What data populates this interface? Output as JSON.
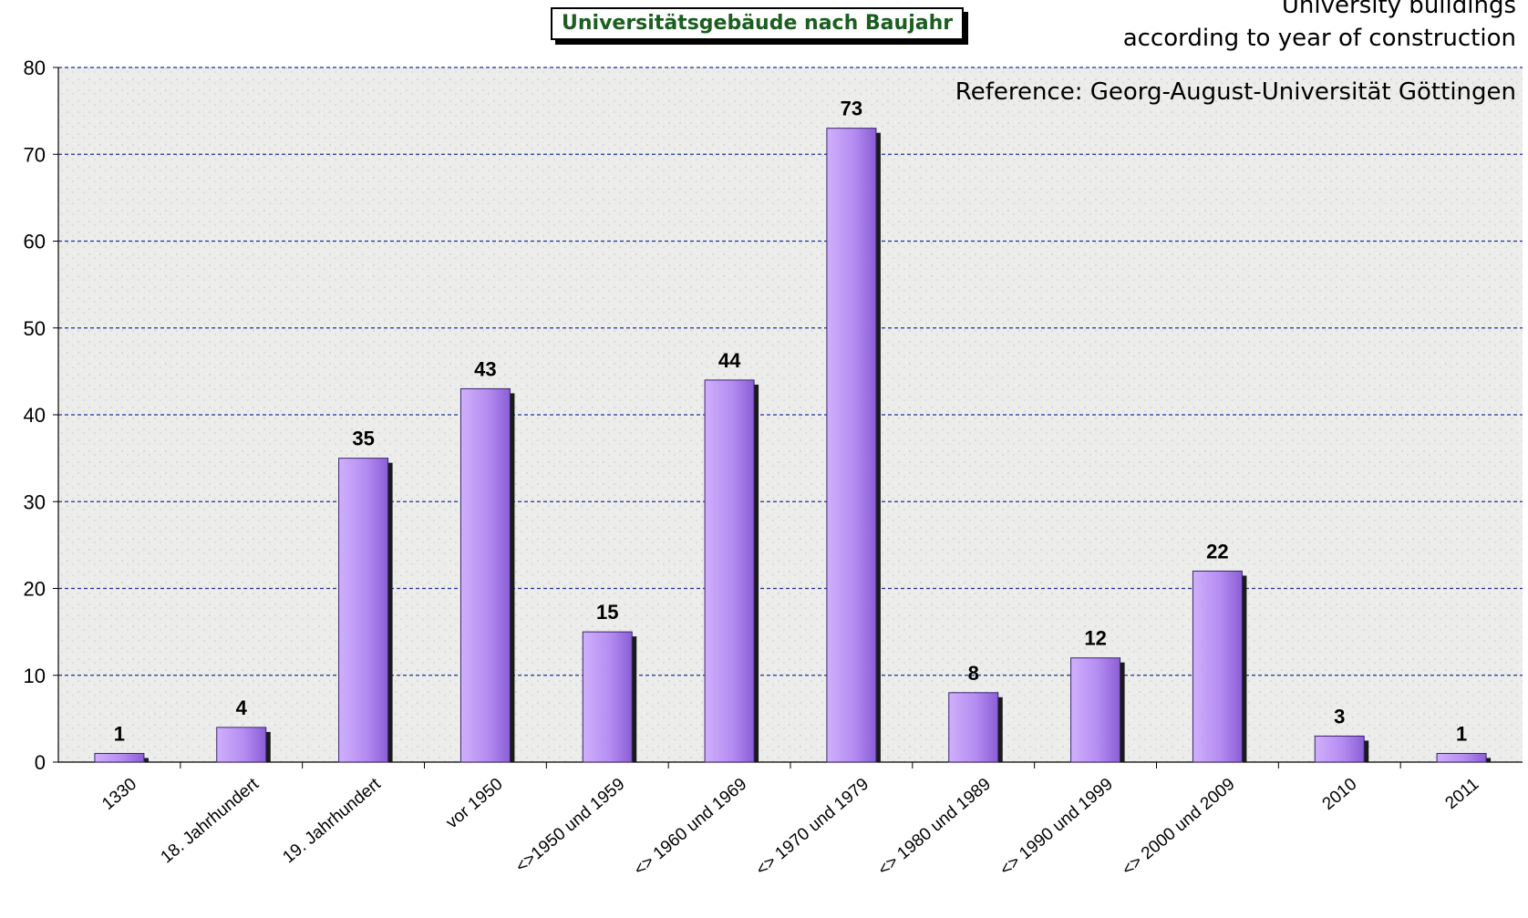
{
  "chart_data": {
    "type": "bar",
    "title": "Universitätsgebäude nach Baujahr",
    "subtitle_lines": [
      "University buildings",
      "according to year of construction"
    ],
    "reference": "Reference: Georg-August-Universität Göttingen",
    "categories": [
      "1330",
      "18. Jahrhundert",
      "19. Jahrhundert",
      "vor 1950",
      "<>1950 und 1959",
      "<> 1960 und 1969",
      "<> 1970 und 1979",
      "<> 1980 und 1989",
      "<> 1990 und 1999",
      "<> 2000 und 2009",
      "2010",
      "2011"
    ],
    "values": [
      1,
      4,
      35,
      43,
      15,
      44,
      73,
      8,
      12,
      22,
      3,
      1
    ],
    "yticks": [
      "0",
      "10",
      "20",
      "30",
      "40",
      "50",
      "60",
      "70",
      "80"
    ],
    "ylim": [
      0,
      80
    ],
    "grid": true,
    "xlabel": "",
    "ylabel": "",
    "colors": {
      "bar": "#b58cf2",
      "bar_dark": "#7f54c9",
      "grid": "#1f2f9a",
      "title_text": "#1b5e20"
    }
  }
}
